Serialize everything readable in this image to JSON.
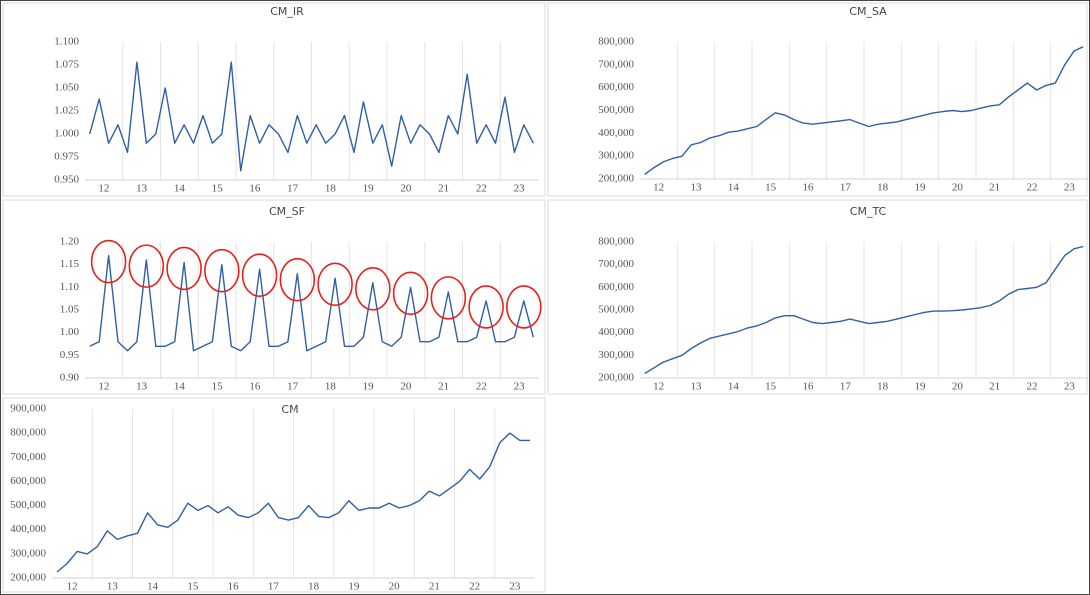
{
  "chart_data": [
    {
      "type": "line",
      "title": "CM_IR",
      "categories": [
        "12",
        null,
        null,
        null,
        "13",
        null,
        null,
        null,
        "14",
        null,
        null,
        null,
        "15",
        null,
        null,
        null,
        "16",
        null,
        null,
        null,
        "17",
        null,
        null,
        null,
        "18",
        null,
        null,
        null,
        "19",
        null,
        null,
        null,
        "20",
        null,
        null,
        null,
        "21",
        null,
        null,
        null,
        "22",
        null,
        null,
        null,
        "23",
        null,
        null,
        null
      ],
      "series": [
        {
          "name": "CM_IR",
          "color": "#2f5fa8",
          "values": [
            1.0,
            1.038,
            0.99,
            1.01,
            0.98,
            1.078,
            0.99,
            1.0,
            1.05,
            0.99,
            1.01,
            0.99,
            1.02,
            0.99,
            1.0,
            1.078,
            0.96,
            1.02,
            0.99,
            1.01,
            1.0,
            0.98,
            1.02,
            0.99,
            1.01,
            0.99,
            1.0,
            1.02,
            0.98,
            1.035,
            0.99,
            1.01,
            0.965,
            1.02,
            0.99,
            1.01,
            1.0,
            0.98,
            1.02,
            1.0,
            1.065,
            0.99,
            1.01,
            0.99,
            1.04,
            0.98,
            1.01,
            0.99
          ]
        }
      ],
      "ylim": [
        0.95,
        1.1
      ],
      "yticks": [
        {
          "value": 1.1,
          "label": "1.100"
        },
        1.075,
        {
          "value": 1.05,
          "label": "1.050"
        },
        1.025,
        {
          "value": 1.0,
          "label": "1.000"
        },
        0.975,
        {
          "value": 0.95,
          "label": "0.950"
        }
      ],
      "grid": true
    },
    {
      "type": "line",
      "title": "CM_SA",
      "categories": [
        "12",
        null,
        null,
        null,
        "13",
        null,
        null,
        null,
        "14",
        null,
        null,
        null,
        "15",
        null,
        null,
        null,
        "16",
        null,
        null,
        null,
        "17",
        null,
        null,
        null,
        "18",
        null,
        null,
        null,
        "19",
        null,
        null,
        null,
        "20",
        null,
        null,
        null,
        "21",
        null,
        null,
        null,
        "22",
        null,
        null,
        null,
        "23",
        null,
        null,
        null
      ],
      "series": [
        {
          "name": "CM_SA",
          "color": "#2f5fa8",
          "values": [
            220000,
            250000,
            275000,
            290000,
            300000,
            350000,
            360000,
            380000,
            390000,
            405000,
            410000,
            420000,
            430000,
            460000,
            490000,
            480000,
            460000,
            445000,
            440000,
            445000,
            450000,
            455000,
            460000,
            445000,
            430000,
            440000,
            445000,
            450000,
            460000,
            470000,
            480000,
            490000,
            495000,
            500000,
            495000,
            500000,
            510000,
            520000,
            525000,
            560000,
            590000,
            620000,
            590000,
            610000,
            620000,
            700000,
            760000,
            780000
          ]
        }
      ],
      "ylim": [
        200000,
        800000
      ],
      "yticks": [
        {
          "value": 800000,
          "label": "800,000"
        },
        {
          "value": 700000,
          "label": "700,000"
        },
        {
          "value": 600000,
          "label": "600,000"
        },
        {
          "value": 500000,
          "label": "500,000"
        },
        {
          "value": 400000,
          "label": "400,000"
        },
        {
          "value": 300000,
          "label": "300,000"
        },
        {
          "value": 200000,
          "label": "200,000"
        }
      ],
      "grid": true
    },
    {
      "type": "line",
      "title": "CM_SF",
      "categories": [
        "12",
        null,
        null,
        null,
        "13",
        null,
        null,
        null,
        "14",
        null,
        null,
        null,
        "15",
        null,
        null,
        null,
        "16",
        null,
        null,
        null,
        "17",
        null,
        null,
        null,
        "18",
        null,
        null,
        null,
        "19",
        null,
        null,
        null,
        "20",
        null,
        null,
        null,
        "21",
        null,
        null,
        null,
        "22",
        null,
        null,
        null,
        "23",
        null,
        null,
        null
      ],
      "series": [
        {
          "name": "CM_SF",
          "color": "#2f5fa8",
          "values": [
            0.97,
            0.98,
            1.17,
            0.98,
            0.96,
            0.98,
            1.16,
            0.97,
            0.97,
            0.98,
            1.155,
            0.96,
            0.97,
            0.98,
            1.15,
            0.97,
            0.96,
            0.98,
            1.14,
            0.97,
            0.97,
            0.98,
            1.13,
            0.96,
            0.97,
            0.98,
            1.12,
            0.97,
            0.97,
            0.99,
            1.11,
            0.98,
            0.97,
            0.99,
            1.1,
            0.98,
            0.98,
            0.99,
            1.09,
            0.98,
            0.98,
            0.99,
            1.07,
            0.98,
            0.98,
            0.99,
            1.07,
            0.99
          ]
        }
      ],
      "ylim": [
        0.9,
        1.2
      ],
      "yticks": [
        {
          "value": 1.2,
          "label": "1.20"
        },
        1.15,
        {
          "value": 1.1,
          "label": "1.10"
        },
        1.05,
        {
          "value": 1.0,
          "label": "1.00"
        },
        0.95,
        {
          "value": 0.9,
          "label": "0.90"
        }
      ],
      "grid": true,
      "highlight_color": "#e8201a"
    },
    {
      "type": "line",
      "title": "CM_TC",
      "categories": [
        "12",
        null,
        null,
        null,
        "13",
        null,
        null,
        null,
        "14",
        null,
        null,
        null,
        "15",
        null,
        null,
        null,
        "16",
        null,
        null,
        null,
        "17",
        null,
        null,
        null,
        "18",
        null,
        null,
        null,
        "19",
        null,
        null,
        null,
        "20",
        null,
        null,
        null,
        "21",
        null,
        null,
        null,
        "22",
        null,
        null,
        null,
        "23",
        null,
        null,
        null
      ],
      "series": [
        {
          "name": "CM_TC",
          "color": "#2f5fa8",
          "values": [
            220000,
            245000,
            270000,
            285000,
            300000,
            330000,
            355000,
            375000,
            385000,
            395000,
            405000,
            420000,
            430000,
            445000,
            465000,
            475000,
            475000,
            460000,
            445000,
            440000,
            445000,
            450000,
            460000,
            450000,
            440000,
            445000,
            450000,
            460000,
            470000,
            480000,
            490000,
            495000,
            495000,
            497000,
            500000,
            505000,
            510000,
            520000,
            540000,
            570000,
            590000,
            595000,
            600000,
            620000,
            680000,
            740000,
            770000,
            780000
          ]
        }
      ],
      "ylim": [
        200000,
        800000
      ],
      "yticks": [
        {
          "value": 800000,
          "label": "800,000"
        },
        {
          "value": 700000,
          "label": "700,000"
        },
        {
          "value": 600000,
          "label": "600,000"
        },
        {
          "value": 500000,
          "label": "500,000"
        },
        {
          "value": 400000,
          "label": "400,000"
        },
        {
          "value": 300000,
          "label": "300,000"
        },
        {
          "value": 200000,
          "label": "200,000"
        }
      ],
      "grid": true
    },
    {
      "type": "line",
      "title": "CM",
      "categories": [
        "12",
        null,
        null,
        null,
        "13",
        null,
        null,
        null,
        "14",
        null,
        null,
        null,
        "15",
        null,
        null,
        null,
        "16",
        null,
        null,
        null,
        "17",
        null,
        null,
        null,
        "18",
        null,
        null,
        null,
        "19",
        null,
        null,
        null,
        "20",
        null,
        null,
        null,
        "21",
        null,
        null,
        null,
        "22",
        null,
        null,
        null,
        "23",
        null,
        null,
        null
      ],
      "series": [
        {
          "name": "CM",
          "color": "#2f5fa8",
          "values": [
            225000,
            260000,
            310000,
            300000,
            330000,
            395000,
            360000,
            375000,
            385000,
            470000,
            420000,
            410000,
            440000,
            510000,
            480000,
            500000,
            470000,
            495000,
            460000,
            450000,
            470000,
            510000,
            450000,
            440000,
            450000,
            500000,
            455000,
            450000,
            470000,
            520000,
            480000,
            490000,
            490000,
            510000,
            490000,
            500000,
            520000,
            560000,
            540000,
            570000,
            600000,
            650000,
            610000,
            660000,
            760000,
            800000,
            770000,
            770000
          ]
        }
      ],
      "ylim": [
        200000,
        900000
      ],
      "yticks": [
        {
          "value": 900000,
          "label": "900,000"
        },
        {
          "value": 800000,
          "label": "800,000"
        },
        {
          "value": 700000,
          "label": "700,000"
        },
        {
          "value": 600000,
          "label": "600,000"
        },
        {
          "value": 500000,
          "label": "500,000"
        },
        {
          "value": 400000,
          "label": "400,000"
        },
        {
          "value": 300000,
          "label": "300,000"
        },
        {
          "value": 200000,
          "label": "200,000"
        }
      ],
      "grid": true
    }
  ]
}
